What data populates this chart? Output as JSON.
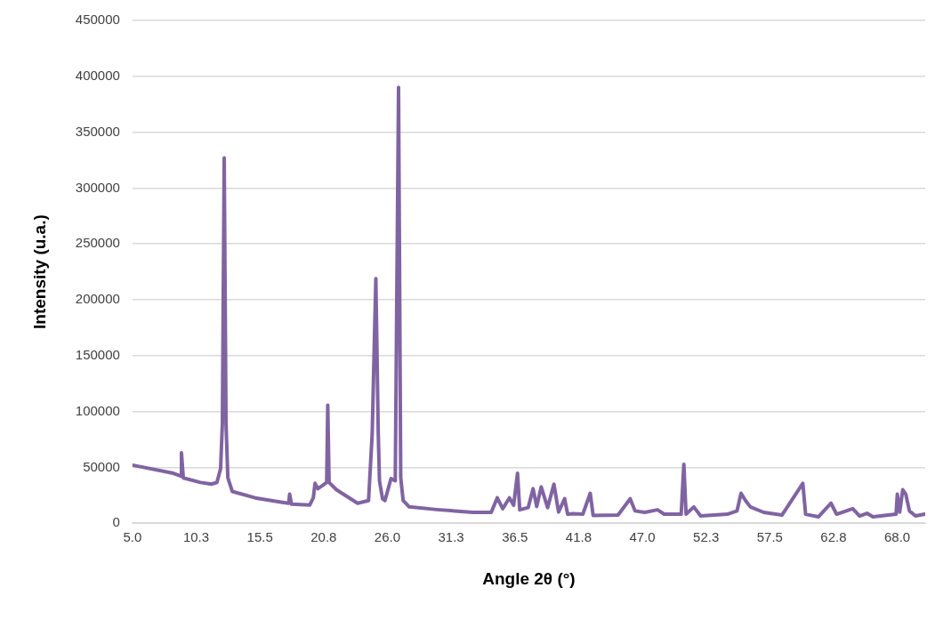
{
  "chart_data": {
    "type": "line",
    "xlabel": "Angle 2θ (°)",
    "ylabel": "Intensity (u.a.)",
    "grid": "y",
    "legend": false,
    "marker": "none",
    "line_style": "solid",
    "xlim": [
      5,
      70.3
    ],
    "ylim": [
      0,
      450000
    ],
    "xticks": [
      {
        "value": 5,
        "label": "5.0"
      },
      {
        "value": 10.25,
        "label": "10.3"
      },
      {
        "value": 15.5,
        "label": "15.5"
      },
      {
        "value": 20.75,
        "label": "20.8"
      },
      {
        "value": 26,
        "label": "26.0"
      },
      {
        "value": 31.25,
        "label": "31.3"
      },
      {
        "value": 36.5,
        "label": "36.5"
      },
      {
        "value": 41.75,
        "label": "41.8"
      },
      {
        "value": 47,
        "label": "47.0"
      },
      {
        "value": 52.25,
        "label": "52.3"
      },
      {
        "value": 57.5,
        "label": "57.5"
      },
      {
        "value": 62.75,
        "label": "62.8"
      },
      {
        "value": 68,
        "label": "68.0"
      }
    ],
    "yticks": [
      0,
      50000,
      100000,
      150000,
      200000,
      250000,
      300000,
      350000,
      400000,
      450000
    ],
    "series": [
      {
        "color": "#8064a2",
        "x": [
          5.0,
          8.37,
          8.97,
          9.04,
          9.19,
          10.6,
          11.5,
          11.96,
          12.26,
          12.41,
          12.56,
          12.71,
          12.86,
          13.23,
          15.1,
          17.35,
          17.87,
          17.95,
          18.1,
          19.6,
          19.9,
          20.04,
          20.27,
          20.7,
          21.0,
          21.09,
          21.2,
          21.8,
          22.6,
          23.55,
          24.45,
          24.75,
          25.05,
          25.25,
          25.35,
          25.6,
          25.8,
          26.3,
          26.65,
          26.92,
          27.1,
          27.3,
          27.8,
          30.07,
          33.06,
          34.55,
          35.05,
          35.5,
          36.05,
          36.4,
          36.72,
          36.9,
          37.6,
          38.0,
          38.3,
          38.67,
          39.2,
          39.72,
          40.1,
          40.6,
          40.85,
          41.3,
          42.1,
          42.71,
          42.95,
          45.0,
          46.0,
          46.4,
          47.2,
          48.25,
          48.8,
          50.2,
          50.42,
          50.6,
          51.24,
          51.8,
          54.0,
          54.8,
          55.13,
          55.5,
          55.9,
          57.0,
          58.5,
          60.22,
          60.45,
          61.5,
          62.54,
          63.0,
          64.33,
          64.9,
          65.5,
          66.0,
          67.9,
          68.0,
          68.2,
          68.45,
          68.7,
          69.0,
          69.5,
          70.25
        ],
        "values": [
          52000,
          44700,
          42200,
          63000,
          40600,
          36500,
          35000,
          36500,
          48700,
          89000,
          327000,
          89000,
          40600,
          28400,
          22700,
          18700,
          17900,
          26000,
          17000,
          16200,
          22700,
          35700,
          30900,
          34100,
          36500,
          105600,
          36500,
          30000,
          24400,
          17900,
          20300,
          80000,
          219000,
          80000,
          38000,
          22000,
          20300,
          40000,
          38000,
          390000,
          40600,
          20300,
          14600,
          12200,
          9700,
          9700,
          22700,
          13000,
          22700,
          16000,
          44700,
          12000,
          14000,
          30900,
          15000,
          32500,
          14000,
          34900,
          10000,
          21900,
          8100,
          8500,
          8100,
          26800,
          7000,
          7300,
          21900,
          11000,
          9700,
          12000,
          8100,
          8100,
          52800,
          8100,
          14600,
          6500,
          8100,
          11000,
          26800,
          20300,
          14600,
          9700,
          7300,
          35700,
          8000,
          5700,
          17900,
          8100,
          13000,
          6500,
          8900,
          5700,
          8100,
          26000,
          10000,
          30000,
          26000,
          11000,
          6500,
          8100
        ]
      }
    ]
  }
}
